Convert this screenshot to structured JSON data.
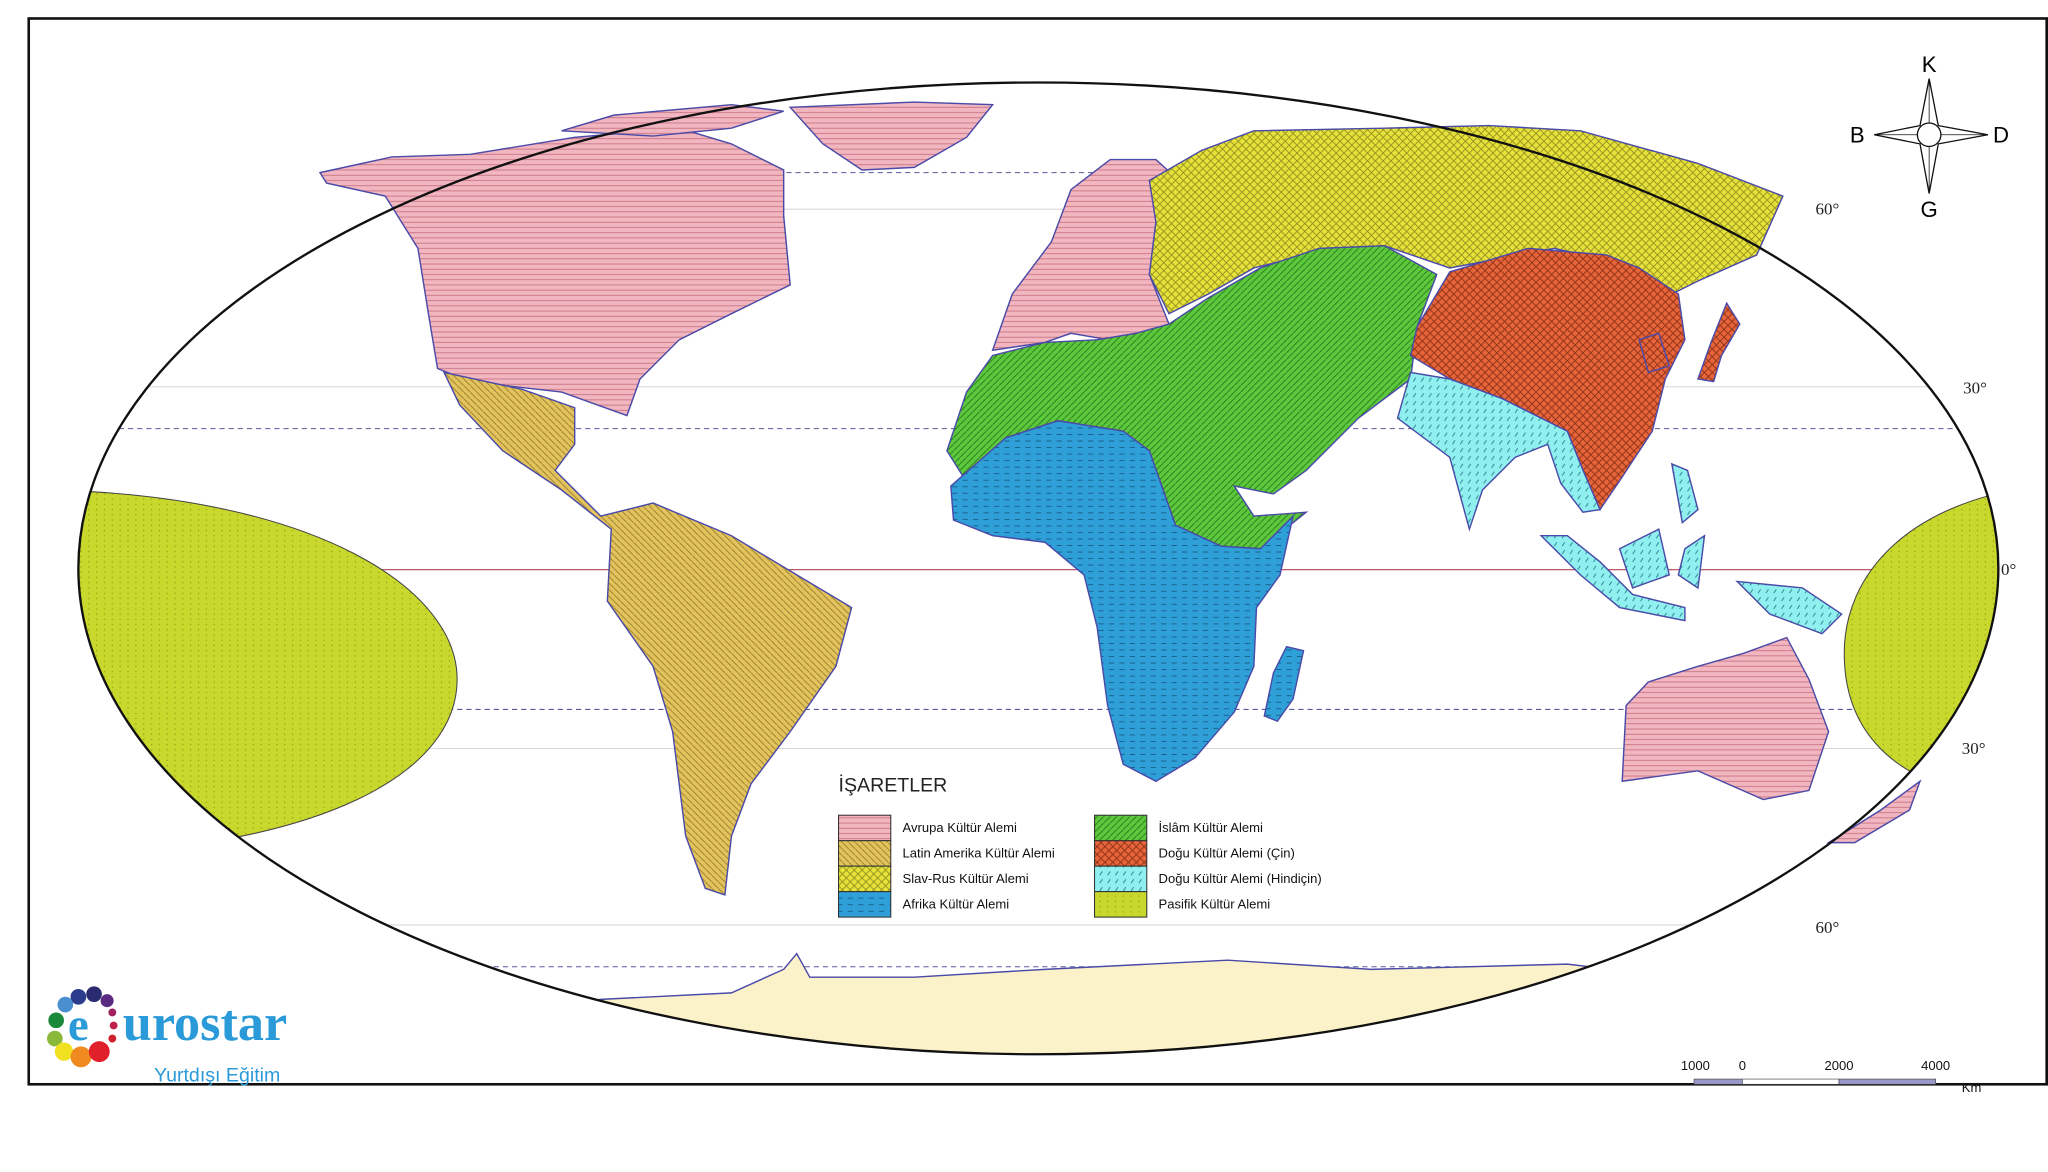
{
  "map": {
    "compass": {
      "north": "K",
      "south": "G",
      "east": "D",
      "west": "B"
    },
    "latitude_labels": {
      "n60": "60°",
      "n30": "30°",
      "eq": "0°",
      "s30": "30°",
      "s60": "60°"
    },
    "legend": {
      "title": "İŞARETLER",
      "items": [
        {
          "label": "Avrupa Kültür Alemi",
          "color": "#f2b6c0",
          "pattern": "horizontal-lines"
        },
        {
          "label": "Latin Amerika Kültür Alemi",
          "color": "#e2c35c",
          "pattern": "diagonal-lines"
        },
        {
          "label": "Slav-Rus Kültür Alemi",
          "color": "#e6e23a",
          "pattern": "crosshatch"
        },
        {
          "label": "Afrika Kültür Alemi",
          "color": "#2f9fd8",
          "pattern": "dashes"
        },
        {
          "label": "İslâm Kültür Alemi",
          "color": "#5cc83c",
          "pattern": "diagonal-lines"
        },
        {
          "label": "Doğu Kültür Alemi (Çin)",
          "color": "#e8643a",
          "pattern": "crosshatch"
        },
        {
          "label": "Doğu Kültür Alemi (Hindiçin)",
          "color": "#90f0f0",
          "pattern": "short-slashes"
        },
        {
          "label": "Pasifik Kültür Alemi",
          "color": "#c9d82c",
          "pattern": "dots"
        }
      ]
    },
    "antarctica_color": "#fcf2c9",
    "scale_bar": {
      "ticks": [
        "1000",
        "0",
        "2000",
        "4000"
      ],
      "unit": "Km"
    }
  },
  "logo": {
    "brand": "eurostar",
    "tagline": "Yurtdışı Eğitim"
  }
}
